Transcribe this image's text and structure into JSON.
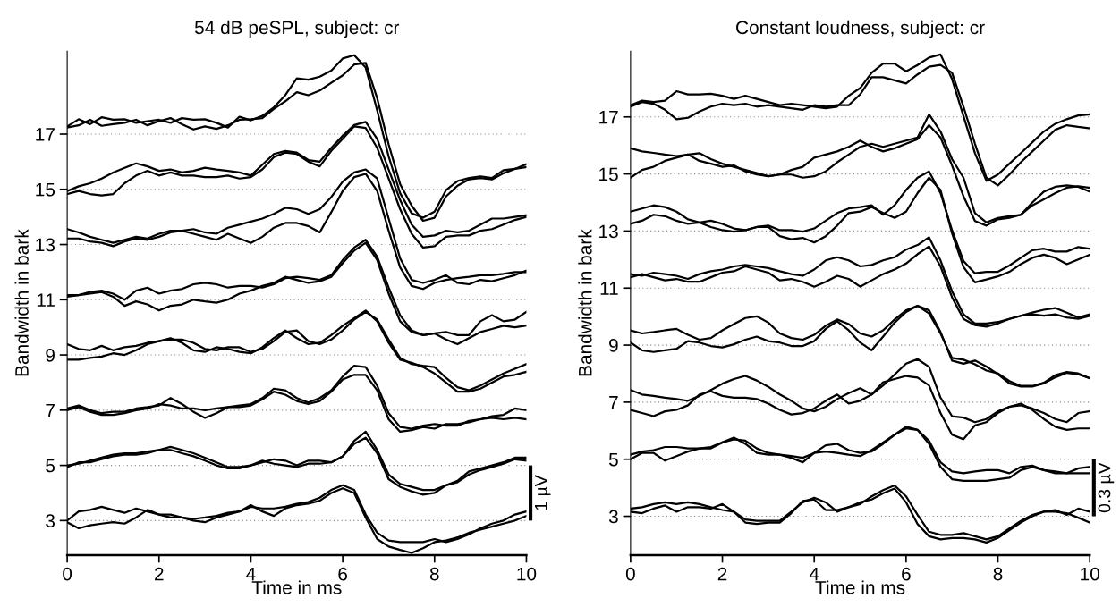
{
  "chart_data": [
    {
      "type": "line",
      "title": "54 dB peSPL, subject: cr",
      "xlabel": "Time in ms",
      "ylabel": "Bandwidth in bark",
      "xlim": [
        0,
        10
      ],
      "xticks": [
        0,
        2,
        4,
        6,
        8,
        10
      ],
      "ylim": [
        1.75,
        20.0
      ],
      "yticks": [
        3,
        5,
        7,
        9,
        11,
        13,
        15,
        17
      ],
      "grid": "y",
      "legend": false,
      "marker": "none",
      "line_style": "solid",
      "annotations": [
        "1 µV"
      ],
      "x": [
        0,
        0.25,
        0.5,
        0.75,
        1,
        1.25,
        1.5,
        1.75,
        2,
        2.25,
        2.5,
        2.75,
        3,
        3.25,
        3.5,
        3.75,
        4,
        4.25,
        4.5,
        4.75,
        5,
        5.25,
        5.5,
        5.75,
        6,
        6.25,
        6.5,
        6.75,
        7,
        7.25,
        7.5,
        7.75,
        8,
        8.25,
        8.5,
        8.75,
        9,
        9.25,
        9.5,
        9.75,
        10
      ],
      "series": [
        {
          "color": "#000000",
          "values": [
            17.28,
            17.54,
            17.36,
            17.61,
            17.52,
            17.54,
            17.41,
            17.47,
            17.52,
            17.41,
            17.58,
            17.52,
            17.54,
            17.41,
            17.24,
            17.63,
            17.5,
            17.66,
            17.97,
            18.41,
            19.02,
            18.97,
            19.08,
            19.3,
            19.74,
            19.86,
            19.41,
            17.86,
            16.19,
            14.86,
            14.13,
            13.97,
            14.19,
            14.97,
            15.3,
            15.41,
            15.47,
            15.41,
            15.69,
            15.74,
            15.91
          ]
        },
        {
          "color": "#000000",
          "values": [
            17.24,
            17.32,
            17.52,
            17.3,
            17.36,
            17.41,
            17.52,
            17.32,
            17.47,
            17.58,
            17.36,
            17.17,
            17.28,
            17.19,
            17.32,
            17.52,
            17.54,
            17.58,
            17.91,
            18.19,
            18.52,
            18.41,
            18.58,
            18.86,
            19.13,
            19.52,
            19.58,
            18.3,
            16.63,
            15.19,
            14.41,
            13.86,
            13.97,
            14.74,
            15.13,
            15.36,
            15.41,
            15.36,
            15.58,
            15.74,
            15.8
          ]
        },
        {
          "color": "#000000",
          "values": [
            14.94,
            15.11,
            15.22,
            15.39,
            15.61,
            15.78,
            15.94,
            15.83,
            15.67,
            15.72,
            15.61,
            15.67,
            15.78,
            15.72,
            15.67,
            15.61,
            15.5,
            15.89,
            16.28,
            16.39,
            16.33,
            16.06,
            16.0,
            16.5,
            16.94,
            17.33,
            17.44,
            16.83,
            15.72,
            14.61,
            13.72,
            13.28,
            13.33,
            13.5,
            13.44,
            13.5,
            13.72,
            13.94,
            13.94,
            14.0,
            14.06
          ]
        },
        {
          "color": "#000000",
          "values": [
            14.83,
            14.94,
            14.83,
            14.78,
            14.83,
            15.22,
            15.5,
            15.67,
            15.5,
            15.61,
            15.5,
            15.5,
            15.44,
            15.44,
            15.5,
            15.39,
            15.44,
            15.72,
            16.17,
            16.33,
            16.28,
            16.0,
            15.83,
            16.39,
            16.83,
            17.28,
            17.22,
            16.5,
            15.39,
            14.28,
            13.39,
            12.89,
            12.94,
            13.28,
            13.33,
            13.33,
            13.5,
            13.56,
            13.72,
            13.89,
            14.0
          ]
        },
        {
          "color": "#000000",
          "values": [
            13.56,
            13.44,
            13.28,
            13.17,
            13.06,
            13.17,
            13.28,
            13.22,
            13.39,
            13.5,
            13.5,
            13.56,
            13.44,
            13.39,
            13.61,
            13.72,
            13.83,
            13.94,
            14.11,
            14.33,
            14.28,
            14.11,
            14.28,
            14.72,
            15.28,
            15.61,
            15.72,
            15.39,
            13.94,
            12.5,
            11.72,
            11.61,
            11.72,
            11.89,
            11.61,
            11.56,
            11.72,
            11.67,
            11.78,
            11.89,
            12.06
          ]
        },
        {
          "color": "#000000",
          "values": [
            13.22,
            13.22,
            13.11,
            13.06,
            12.94,
            13.11,
            13.22,
            13.17,
            13.28,
            13.44,
            13.5,
            13.39,
            13.28,
            13.17,
            13.39,
            13.22,
            13.06,
            13.28,
            13.61,
            13.78,
            13.78,
            13.67,
            13.44,
            14.17,
            14.94,
            15.44,
            15.56,
            14.94,
            13.5,
            12.17,
            11.5,
            11.39,
            11.61,
            11.72,
            11.78,
            11.83,
            11.89,
            11.89,
            11.94,
            12.0,
            12.0
          ]
        },
        {
          "color": "#000000",
          "values": [
            11.17,
            11.17,
            11.28,
            11.33,
            11.22,
            11.0,
            11.33,
            11.44,
            11.22,
            11.33,
            11.39,
            11.56,
            11.61,
            11.56,
            11.44,
            11.5,
            11.5,
            11.44,
            11.56,
            11.78,
            11.83,
            11.78,
            11.72,
            11.89,
            12.44,
            12.89,
            13.17,
            12.56,
            11.44,
            10.44,
            9.89,
            9.72,
            9.78,
            9.83,
            9.72,
            9.72,
            10.22,
            10.44,
            10.22,
            10.28,
            10.56
          ]
        },
        {
          "color": "#000000",
          "values": [
            11.11,
            11.17,
            11.22,
            11.28,
            11.11,
            10.78,
            10.94,
            10.83,
            10.61,
            10.78,
            10.83,
            11.0,
            10.94,
            10.89,
            11.0,
            11.22,
            11.33,
            11.5,
            11.61,
            11.83,
            11.72,
            11.61,
            11.67,
            11.83,
            12.33,
            12.78,
            13.06,
            12.44,
            11.22,
            10.22,
            9.83,
            9.72,
            9.78,
            9.56,
            9.39,
            9.61,
            9.83,
            9.94,
            10.06,
            10.0,
            10.06
          ]
        },
        {
          "color": "#000000",
          "values": [
            9.39,
            9.22,
            9.17,
            9.33,
            9.17,
            9.28,
            9.33,
            9.44,
            9.5,
            9.56,
            9.56,
            9.44,
            9.22,
            9.17,
            9.28,
            9.28,
            9.11,
            9.22,
            9.5,
            9.83,
            9.89,
            9.5,
            9.39,
            9.56,
            9.89,
            10.28,
            10.56,
            10.28,
            9.56,
            8.89,
            8.67,
            8.61,
            8.56,
            8.17,
            7.83,
            7.72,
            7.89,
            8.11,
            8.33,
            8.5,
            8.67
          ]
        },
        {
          "color": "#000000",
          "values": [
            8.83,
            8.83,
            8.89,
            8.94,
            9.06,
            9.0,
            9.17,
            9.39,
            9.5,
            9.61,
            9.44,
            9.17,
            9.11,
            9.28,
            9.22,
            9.11,
            9.06,
            9.28,
            9.61,
            9.89,
            9.61,
            9.39,
            9.44,
            9.72,
            10.06,
            10.33,
            10.61,
            10.22,
            9.44,
            8.83,
            8.72,
            8.56,
            8.33,
            8.0,
            7.67,
            7.67,
            7.78,
            8.0,
            8.22,
            8.28,
            8.39
          ]
        },
        {
          "color": "#000000",
          "values": [
            7.06,
            7.17,
            7.0,
            6.89,
            6.94,
            6.94,
            7.06,
            7.11,
            7.17,
            7.44,
            7.22,
            6.94,
            6.72,
            6.89,
            7.11,
            7.17,
            7.22,
            7.44,
            7.78,
            7.72,
            7.44,
            7.28,
            7.44,
            7.72,
            8.22,
            8.61,
            8.56,
            7.89,
            6.89,
            6.39,
            6.33,
            6.44,
            6.5,
            6.44,
            6.44,
            6.61,
            6.67,
            6.78,
            6.83,
            7.06,
            7.0
          ]
        },
        {
          "color": "#000000",
          "values": [
            7.0,
            7.11,
            6.94,
            6.83,
            6.83,
            6.89,
            7.0,
            7.06,
            7.22,
            7.17,
            7.06,
            7.06,
            7.0,
            7.06,
            7.11,
            7.11,
            7.17,
            7.39,
            7.67,
            7.56,
            7.33,
            7.22,
            7.33,
            7.67,
            8.11,
            8.28,
            8.28,
            7.72,
            6.67,
            6.22,
            6.28,
            6.39,
            6.33,
            6.5,
            6.5,
            6.56,
            6.67,
            6.72,
            6.67,
            6.72,
            6.67
          ]
        },
        {
          "color": "#000000",
          "values": [
            5.0,
            5.06,
            5.17,
            5.28,
            5.39,
            5.44,
            5.44,
            5.5,
            5.56,
            5.67,
            5.56,
            5.44,
            5.28,
            5.11,
            4.94,
            4.94,
            5.0,
            5.11,
            5.22,
            5.17,
            5.0,
            5.17,
            5.17,
            5.11,
            5.33,
            5.89,
            6.22,
            5.56,
            4.67,
            4.33,
            4.22,
            4.11,
            4.11,
            4.28,
            4.44,
            4.78,
            4.89,
            5.0,
            5.11,
            5.28,
            5.28
          ]
        },
        {
          "color": "#000000",
          "values": [
            4.94,
            5.11,
            5.11,
            5.22,
            5.33,
            5.39,
            5.39,
            5.44,
            5.56,
            5.56,
            5.44,
            5.33,
            5.17,
            5.0,
            4.89,
            4.89,
            5.0,
            5.17,
            5.06,
            5.0,
            4.94,
            5.06,
            5.06,
            5.11,
            5.33,
            5.78,
            6.0,
            5.44,
            4.5,
            4.22,
            4.06,
            3.94,
            4.0,
            4.28,
            4.39,
            4.67,
            4.83,
            4.94,
            5.06,
            5.22,
            5.17
          ]
        },
        {
          "color": "#000000",
          "values": [
            3.0,
            3.33,
            3.39,
            3.5,
            3.39,
            3.28,
            3.44,
            3.33,
            3.22,
            3.22,
            3.11,
            3.06,
            3.11,
            3.17,
            3.28,
            3.33,
            3.5,
            3.44,
            3.44,
            3.5,
            3.61,
            3.67,
            3.83,
            4.11,
            4.28,
            4.11,
            3.22,
            2.56,
            2.28,
            2.22,
            2.22,
            2.22,
            2.33,
            2.22,
            2.33,
            2.5,
            2.72,
            2.89,
            3.0,
            3.22,
            3.33
          ]
        },
        {
          "color": "#000000",
          "values": [
            2.94,
            2.72,
            2.83,
            2.89,
            2.94,
            2.89,
            3.11,
            3.39,
            3.22,
            3.11,
            3.11,
            3.0,
            2.94,
            3.11,
            3.22,
            3.33,
            3.56,
            3.33,
            3.17,
            3.44,
            3.56,
            3.61,
            3.72,
            4.0,
            4.17,
            4.0,
            3.11,
            2.33,
            2.06,
            1.94,
            1.83,
            2.0,
            2.22,
            2.28,
            2.39,
            2.56,
            2.67,
            2.78,
            2.89,
            3.0,
            3.17
          ]
        }
      ]
    },
    {
      "type": "line",
      "title": "Constant loudness, subject: cr",
      "xlabel": "Time in ms",
      "ylabel": "Bandwidth in bark",
      "xlim": [
        0,
        10
      ],
      "xticks": [
        0,
        2,
        4,
        6,
        8,
        10
      ],
      "ylim": [
        1.64,
        19.3
      ],
      "yticks": [
        3,
        5,
        7,
        9,
        11,
        13,
        15,
        17
      ],
      "grid": "y",
      "legend": false,
      "marker": "none",
      "line_style": "solid",
      "annotations": [
        "0.3 µV"
      ],
      "x": [
        0,
        0.25,
        0.5,
        0.75,
        1,
        1.25,
        1.5,
        1.75,
        2,
        2.25,
        2.5,
        2.75,
        3,
        3.25,
        3.5,
        3.75,
        4,
        4.25,
        4.5,
        4.75,
        5,
        5.25,
        5.5,
        5.75,
        6,
        6.25,
        6.5,
        6.75,
        7,
        7.25,
        7.5,
        7.75,
        8,
        8.25,
        8.5,
        8.75,
        9,
        9.25,
        9.5,
        9.75,
        10
      ],
      "series": [
        {
          "color": "#000000",
          "values": [
            17.41,
            17.57,
            17.52,
            17.57,
            17.9,
            17.79,
            17.79,
            17.81,
            17.74,
            17.63,
            17.74,
            17.63,
            17.52,
            17.41,
            17.46,
            17.41,
            17.36,
            17.3,
            17.36,
            17.74,
            18.01,
            18.55,
            18.87,
            18.87,
            18.6,
            18.82,
            19.08,
            19.19,
            18.33,
            17.03,
            15.73,
            14.76,
            14.98,
            15.36,
            15.73,
            16.11,
            16.49,
            16.76,
            16.92,
            17.05,
            17.09
          ]
        },
        {
          "color": "#000000",
          "values": [
            17.36,
            17.52,
            17.46,
            17.25,
            16.92,
            16.97,
            17.19,
            17.36,
            17.46,
            17.41,
            17.46,
            17.36,
            17.41,
            17.36,
            17.3,
            17.25,
            17.41,
            17.36,
            17.41,
            17.41,
            17.79,
            18.39,
            18.39,
            18.28,
            18.17,
            18.49,
            18.76,
            18.82,
            18.55,
            17.36,
            16.06,
            14.87,
            14.6,
            14.98,
            15.41,
            15.79,
            16.17,
            16.55,
            16.71,
            16.65,
            16.6
          ]
        },
        {
          "color": "#000000",
          "values": [
            15.9,
            15.79,
            15.74,
            15.68,
            15.63,
            15.68,
            15.46,
            15.36,
            15.25,
            15.3,
            15.09,
            14.98,
            14.92,
            14.98,
            14.98,
            14.87,
            14.92,
            15.09,
            15.41,
            15.68,
            15.95,
            16.06,
            15.95,
            16.06,
            16.17,
            16.28,
            17.09,
            16.49,
            15.52,
            14.87,
            13.63,
            13.3,
            13.46,
            13.52,
            13.57,
            14.0,
            14.38,
            14.55,
            14.6,
            14.55,
            14.38
          ]
        },
        {
          "color": "#000000",
          "values": [
            14.87,
            15.14,
            15.25,
            15.46,
            15.57,
            15.68,
            15.73,
            15.52,
            15.36,
            15.25,
            15.14,
            15.03,
            14.92,
            14.98,
            15.14,
            15.25,
            15.57,
            15.68,
            15.79,
            15.95,
            16.17,
            15.95,
            15.79,
            15.9,
            16.06,
            16.22,
            16.71,
            16.28,
            15.3,
            14.22,
            13.35,
            13.19,
            13.41,
            13.46,
            13.57,
            13.9,
            14.11,
            14.33,
            14.52,
            14.57,
            14.52
          ]
        },
        {
          "color": "#000000",
          "values": [
            13.68,
            13.79,
            13.9,
            13.84,
            13.68,
            13.41,
            13.3,
            13.36,
            13.25,
            13.09,
            13.03,
            13.14,
            13.19,
            13.03,
            13.03,
            12.98,
            13.09,
            13.36,
            13.63,
            13.79,
            13.84,
            13.9,
            13.57,
            13.9,
            14.44,
            14.87,
            15.09,
            14.33,
            13.03,
            11.95,
            11.52,
            11.57,
            11.57,
            11.79,
            12.06,
            12.33,
            12.38,
            12.28,
            12.28,
            12.44,
            12.38
          ]
        },
        {
          "color": "#000000",
          "values": [
            13.25,
            13.36,
            13.57,
            13.52,
            13.36,
            13.25,
            13.3,
            13.14,
            13.03,
            12.98,
            13.03,
            13.14,
            13.14,
            12.82,
            12.71,
            12.76,
            12.6,
            12.82,
            13.19,
            13.63,
            13.68,
            13.84,
            13.63,
            13.46,
            13.68,
            14.33,
            14.87,
            14.44,
            12.92,
            11.74,
            11.2,
            11.3,
            11.41,
            11.57,
            11.84,
            12.06,
            12.17,
            12.06,
            11.84,
            12.0,
            12.17
          ]
        },
        {
          "color": "#000000",
          "values": [
            11.49,
            11.43,
            11.54,
            11.49,
            11.43,
            11.32,
            11.49,
            11.59,
            11.65,
            11.76,
            11.81,
            11.76,
            11.7,
            11.59,
            11.49,
            11.43,
            11.65,
            11.97,
            12.08,
            11.97,
            11.76,
            11.81,
            11.97,
            12.08,
            12.35,
            12.51,
            12.78,
            11.97,
            10.89,
            10.08,
            9.76,
            9.76,
            9.81,
            9.92,
            10.03,
            10.14,
            10.24,
            10.3,
            10.14,
            9.97,
            10.08
          ]
        },
        {
          "color": "#000000",
          "values": [
            11.38,
            11.49,
            11.38,
            11.27,
            11.32,
            11.22,
            11.22,
            11.38,
            11.54,
            11.59,
            11.76,
            11.65,
            11.54,
            11.27,
            11.32,
            11.22,
            11.05,
            11.22,
            11.43,
            11.32,
            11.05,
            11.27,
            11.49,
            11.65,
            11.86,
            12.19,
            12.46,
            11.76,
            10.68,
            9.92,
            9.7,
            9.65,
            9.76,
            9.92,
            10.03,
            10.08,
            10.03,
            10.08,
            9.97,
            9.92,
            10.03
          ]
        },
        {
          "color": "#000000",
          "values": [
            9.52,
            9.41,
            9.46,
            9.52,
            9.57,
            9.36,
            9.19,
            9.25,
            9.52,
            9.74,
            9.95,
            10.01,
            9.79,
            9.41,
            9.25,
            9.19,
            9.36,
            9.68,
            9.9,
            9.74,
            9.41,
            9.3,
            9.52,
            9.9,
            10.22,
            10.38,
            10.11,
            9.41,
            8.55,
            8.49,
            8.33,
            8.11,
            8.01,
            7.74,
            7.57,
            7.57,
            7.68,
            7.95,
            8.06,
            8.01,
            7.84
          ]
        },
        {
          "color": "#000000",
          "values": [
            9.09,
            8.82,
            8.76,
            8.82,
            8.87,
            9.14,
            9.09,
            8.97,
            8.92,
            9.03,
            9.19,
            9.3,
            9.14,
            9.09,
            8.97,
            8.97,
            9.14,
            9.57,
            9.84,
            9.52,
            9.09,
            8.82,
            9.3,
            9.79,
            10.16,
            10.38,
            10.22,
            9.46,
            8.46,
            8.35,
            8.46,
            8.25,
            7.98,
            7.66,
            7.55,
            7.55,
            7.66,
            7.87,
            8.03,
            7.98,
            7.84
          ]
        },
        {
          "color": "#000000",
          "values": [
            7.43,
            7.27,
            7.22,
            7.16,
            7.11,
            7.05,
            7.22,
            7.43,
            7.65,
            7.81,
            7.92,
            7.76,
            7.54,
            7.27,
            7.05,
            6.78,
            6.68,
            6.84,
            7.11,
            7.32,
            7.49,
            7.27,
            7.59,
            7.97,
            8.35,
            8.51,
            8.24,
            7.16,
            6.51,
            6.46,
            6.3,
            6.41,
            6.68,
            6.84,
            6.89,
            6.78,
            6.62,
            6.41,
            6.3,
            6.62,
            6.68
          ]
        },
        {
          "color": "#000000",
          "values": [
            6.73,
            6.62,
            6.51,
            6.68,
            6.73,
            6.89,
            7.27,
            7.38,
            7.22,
            7.16,
            7.16,
            7.11,
            6.95,
            6.73,
            6.57,
            6.62,
            6.78,
            7.05,
            7.27,
            6.95,
            7.05,
            7.27,
            7.7,
            7.81,
            7.92,
            7.86,
            7.59,
            6.62,
            5.86,
            5.7,
            6.19,
            6.3,
            6.62,
            6.84,
            6.95,
            6.73,
            6.41,
            6.14,
            6.03,
            6.08,
            6.08
          ]
        },
        {
          "color": "#000000",
          "values": [
            5.16,
            5.27,
            5.32,
            5.43,
            5.43,
            5.38,
            5.38,
            5.43,
            5.59,
            5.7,
            5.65,
            5.38,
            5.22,
            5.16,
            5.11,
            5.05,
            5.22,
            5.49,
            5.54,
            5.32,
            5.22,
            5.27,
            5.54,
            5.86,
            6.14,
            6.03,
            5.65,
            4.89,
            4.57,
            4.51,
            4.57,
            4.62,
            4.62,
            4.51,
            4.73,
            4.78,
            4.62,
            4.57,
            4.51,
            4.68,
            4.73
          ]
        },
        {
          "color": "#000000",
          "values": [
            5.0,
            5.22,
            5.22,
            4.95,
            5.11,
            5.27,
            5.38,
            5.38,
            5.59,
            5.76,
            5.54,
            5.22,
            5.16,
            5.16,
            5.05,
            4.89,
            5.22,
            5.27,
            5.22,
            5.16,
            5.11,
            5.32,
            5.59,
            5.86,
            6.08,
            6.03,
            5.54,
            4.73,
            4.3,
            4.24,
            4.24,
            4.24,
            4.3,
            4.35,
            4.62,
            4.73,
            4.62,
            4.51,
            4.51,
            4.51,
            4.51
          ]
        },
        {
          "color": "#000000",
          "values": [
            3.27,
            3.32,
            3.43,
            3.49,
            3.43,
            3.49,
            3.43,
            3.32,
            3.22,
            3.16,
            2.89,
            2.84,
            2.84,
            2.84,
            3.16,
            3.49,
            3.65,
            3.49,
            3.16,
            3.32,
            3.43,
            3.7,
            3.92,
            4.08,
            3.7,
            3.05,
            2.46,
            2.35,
            2.35,
            2.41,
            2.3,
            2.19,
            2.3,
            2.57,
            2.84,
            3.05,
            3.16,
            3.22,
            3.05,
            3.27,
            3.16
          ]
        },
        {
          "color": "#000000",
          "values": [
            3.16,
            3.11,
            3.27,
            3.38,
            3.16,
            3.32,
            3.32,
            3.27,
            3.43,
            3.16,
            2.78,
            2.73,
            2.78,
            2.78,
            3.11,
            3.54,
            3.59,
            3.22,
            3.22,
            3.32,
            3.49,
            3.59,
            3.81,
            3.97,
            3.49,
            2.73,
            2.3,
            2.19,
            2.24,
            2.24,
            2.19,
            2.08,
            2.24,
            2.51,
            2.78,
            3.0,
            3.16,
            3.16,
            3.11,
            2.95,
            2.78
          ]
        }
      ]
    }
  ]
}
